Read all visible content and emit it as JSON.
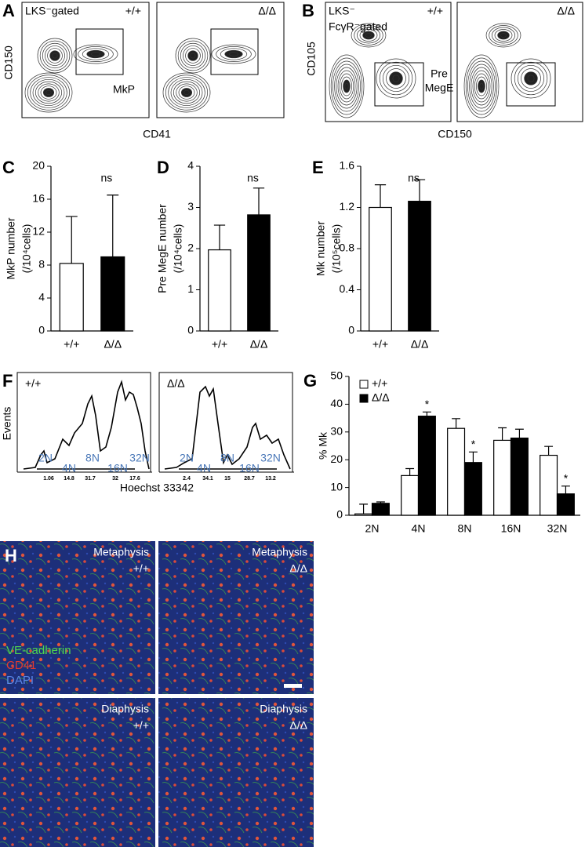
{
  "flow": [
    {
      "label": "A",
      "gate_note": [
        "LKS⁻gated"
      ],
      "genotypes": [
        "+/+",
        "Δ/Δ"
      ],
      "gate": [
        "MkP"
      ],
      "ylabel": "CD150",
      "xlabel": "CD41"
    },
    {
      "label": "B",
      "gate_note": [
        "LKS⁻",
        "FcγR⁻gated"
      ],
      "genotypes": [
        "+/+",
        "Δ/Δ"
      ],
      "gate": [
        "Pre",
        "MegE"
      ],
      "ylabel": "CD105",
      "xlabel": "CD150"
    }
  ],
  "chart_data": [
    {
      "type": "bar",
      "label": "C",
      "ylabel": "MkP number",
      "ylabel_unit": "(/10⁴cells)",
      "categories": [
        "+/+",
        "Δ/Δ"
      ],
      "values": [
        8.2,
        9.0
      ],
      "errors": [
        5.7,
        7.5
      ],
      "colors": [
        "#ffffff",
        "#000000"
      ],
      "annotation": "ns",
      "ylim": [
        0,
        20
      ],
      "yticks": [
        0,
        4,
        8,
        12,
        16,
        20
      ]
    },
    {
      "type": "bar",
      "label": "D",
      "ylabel": "Pre MegE number",
      "ylabel_unit": "(/10⁴cells)",
      "categories": [
        "+/+",
        "Δ/Δ"
      ],
      "values": [
        1.97,
        2.82
      ],
      "errors": [
        0.6,
        0.65
      ],
      "colors": [
        "#ffffff",
        "#000000"
      ],
      "annotation": "ns",
      "ylim": [
        0,
        4
      ],
      "yticks": [
        0,
        1,
        2,
        3,
        4
      ]
    },
    {
      "type": "bar",
      "label": "E",
      "ylabel": "Mk number",
      "ylabel_unit": "(/10⁵cells)",
      "categories": [
        "+/+",
        "Δ/Δ"
      ],
      "values": [
        1.2,
        1.26
      ],
      "errors": [
        0.22,
        0.21
      ],
      "colors": [
        "#ffffff",
        "#000000"
      ],
      "annotation": "ns",
      "ylim": [
        0,
        1.6
      ],
      "yticks": [
        0,
        0.4,
        0.8,
        1.2,
        1.6
      ]
    },
    {
      "type": "bar",
      "label": "G",
      "ylabel": "% Mk",
      "categories": [
        "2N",
        "4N",
        "8N",
        "16N",
        "32N"
      ],
      "series": [
        {
          "name": "+/+",
          "color": "#ffffff",
          "values": [
            0.5,
            14.3,
            31.3,
            27,
            21.6
          ],
          "errors": [
            3.5,
            2.5,
            3.5,
            4.5,
            3.2
          ]
        },
        {
          "name": "Δ/Δ",
          "color": "#000000",
          "values": [
            4.3,
            35.7,
            19,
            27.8,
            7.7
          ],
          "errors": [
            0.5,
            1.5,
            3.8,
            3.2,
            2.8
          ],
          "value_annotations": [
            null,
            "*",
            "*",
            null,
            "*"
          ]
        }
      ],
      "ylim": [
        0,
        50
      ],
      "yticks": [
        0,
        10,
        20,
        30,
        40,
        50
      ]
    }
  ],
  "ploidy": {
    "label": "F",
    "genotypes": [
      "+/+",
      "Δ/Δ"
    ],
    "ylabel": "Events",
    "xlabel": "Hoechst 33342",
    "classes": [
      "2N",
      "4N",
      "8N",
      "16N",
      "32N"
    ],
    "gate_percent": [
      [
        1.06,
        14.8,
        31.7,
        32,
        17.6
      ],
      [
        2.4,
        34.1,
        15,
        28.7,
        13.2
      ]
    ]
  },
  "images": {
    "label": "H",
    "regions": [
      "Metaphysis",
      "Diaphysis"
    ],
    "genotypes": [
      "+/+",
      "Δ/Δ"
    ],
    "stains": [
      "VE-cadherin",
      "CD41",
      "DAPI"
    ]
  }
}
